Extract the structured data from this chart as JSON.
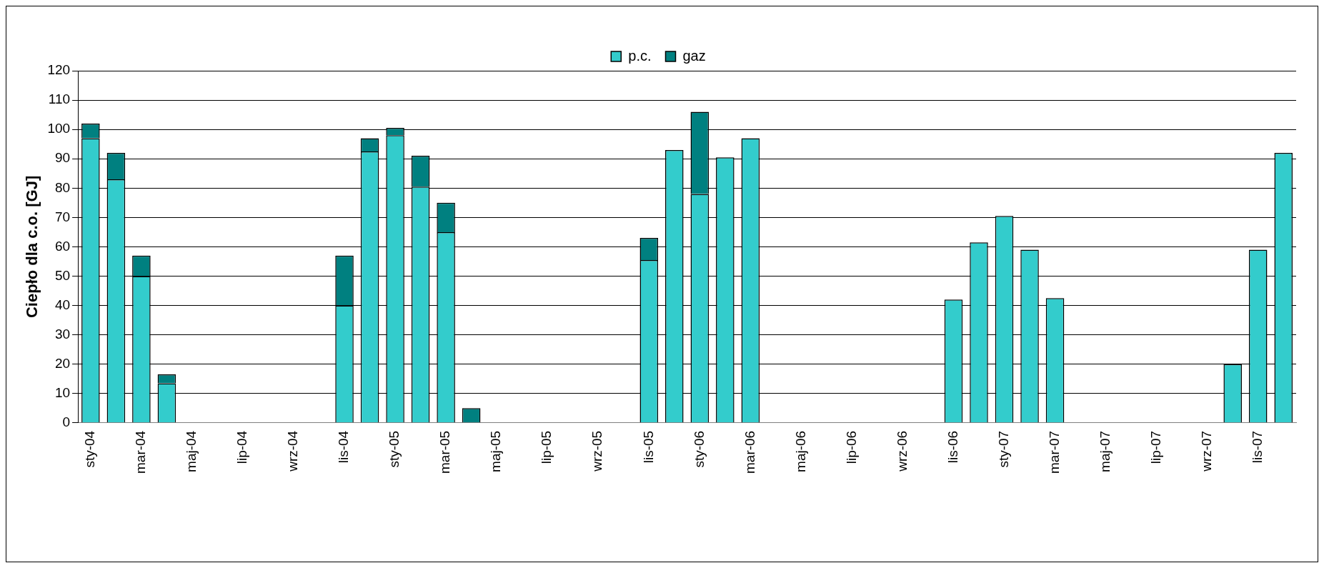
{
  "chart_data": {
    "type": "bar",
    "ylabel": "Ciepło dla c.o. [GJ]",
    "stacked": true,
    "legend": "top",
    "grid": "y",
    "ylim": [
      0,
      120
    ],
    "yticks": [
      0,
      10,
      20,
      30,
      40,
      50,
      60,
      70,
      80,
      90,
      100,
      110,
      120
    ],
    "categories": [
      "sty-04",
      null,
      "mar-04",
      null,
      "maj-04",
      null,
      "lip-04",
      null,
      "wrz-04",
      null,
      "lis-04",
      null,
      "sty-05",
      null,
      "mar-05",
      null,
      "maj-05",
      null,
      "lip-05",
      null,
      "wrz-05",
      null,
      "lis-05",
      null,
      "sty-06",
      null,
      "mar-06",
      null,
      "maj-06",
      null,
      "lip-06",
      null,
      "wrz-06",
      null,
      "lis-06",
      null,
      "sty-07",
      null,
      "mar-07",
      null,
      "maj-07",
      null,
      "lip-07",
      null,
      "wrz-07",
      null,
      "lis-07",
      null
    ],
    "series": [
      {
        "name": "p.c.",
        "color": "#33cccc",
        "values": [
          97,
          83,
          50,
          13.5,
          null,
          null,
          null,
          null,
          null,
          null,
          40,
          92.5,
          98,
          80.5,
          65,
          null,
          null,
          null,
          null,
          null,
          null,
          null,
          55.5,
          93,
          78,
          90.5,
          97,
          null,
          null,
          null,
          null,
          null,
          null,
          null,
          42,
          61.5,
          70.5,
          59,
          42.5,
          null,
          null,
          null,
          null,
          null,
          null,
          20,
          59,
          92
        ]
      },
      {
        "name": "gaz",
        "color": "#008080",
        "values": [
          5,
          9,
          7,
          3,
          null,
          null,
          null,
          null,
          null,
          null,
          17,
          4.5,
          2.5,
          10.5,
          10,
          5,
          null,
          null,
          null,
          null,
          null,
          null,
          7.5,
          null,
          28,
          null,
          null,
          null,
          null,
          null,
          null,
          null,
          null,
          null,
          null,
          null,
          null,
          null,
          null,
          null,
          null,
          null,
          null,
          null,
          null,
          null,
          null,
          null
        ]
      }
    ]
  }
}
